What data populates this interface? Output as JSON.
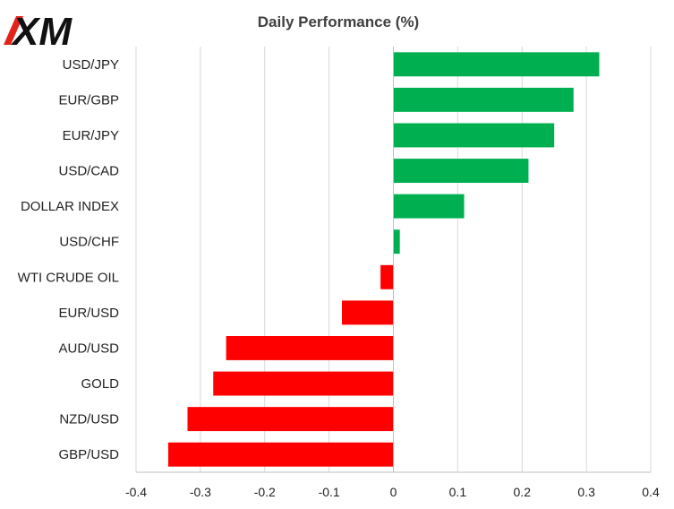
{
  "logo": {
    "text": "XM"
  },
  "chart_data": {
    "type": "bar",
    "orientation": "horizontal",
    "title": "Daily Performance  (%)",
    "categories": [
      "USD/JPY",
      "EUR/GBP",
      "EUR/JPY",
      "USD/CAD",
      "DOLLAR INDEX",
      "USD/CHF",
      "WTI CRUDE OIL",
      "EUR/USD",
      "AUD/USD",
      "GOLD",
      "NZD/USD",
      "GBP/USD"
    ],
    "values": [
      0.32,
      0.28,
      0.25,
      0.21,
      0.11,
      0.01,
      -0.02,
      -0.08,
      -0.26,
      -0.28,
      -0.32,
      -0.35
    ],
    "xlim": [
      -0.4,
      0.4
    ],
    "xticks": [
      "-0.4",
      "-0.3",
      "-0.2",
      "-0.1",
      "0",
      "0.1",
      "0.2",
      "0.3",
      "0.4"
    ],
    "xtick_values": [
      -0.4,
      -0.3,
      -0.2,
      -0.1,
      0,
      0.1,
      0.2,
      0.3,
      0.4
    ],
    "grid": true,
    "colors": {
      "positive": "#00b050",
      "negative": "#ff0000",
      "grid": "#d9d9d9",
      "axis": "#bfbfbf"
    }
  }
}
